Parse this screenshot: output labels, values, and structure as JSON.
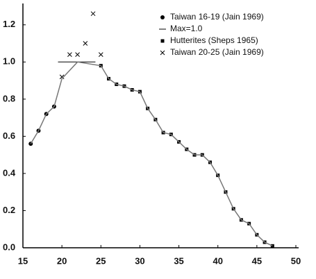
{
  "chart_data": {
    "type": "scatter",
    "xlim": [
      15,
      50
    ],
    "xticks": [
      15,
      20,
      25,
      30,
      35,
      40,
      45,
      50
    ],
    "ylim": [
      0,
      1.3
    ],
    "yticks": [
      {
        "value": 0,
        "label": "0.0"
      },
      0.2,
      0.4,
      0.6,
      0.8,
      {
        "value": 1,
        "label": "1.0"
      },
      1.2
    ],
    "series": [
      {
        "name": "Taiwan 16-19 (Jain 1969)",
        "marker": "circle",
        "color": "#000000",
        "x": [
          16,
          17,
          18,
          19
        ],
        "values": [
          0.56,
          0.63,
          0.72,
          0.76
        ]
      },
      {
        "name": "Max=1.0",
        "marker": "line",
        "color": "#000000",
        "x": [
          19.5,
          24.3
        ],
        "values": [
          1,
          1
        ]
      },
      {
        "name": "Hutterites (Sheps 1965)",
        "marker": "square",
        "color": "#000000",
        "x": [
          25,
          26,
          27,
          28,
          29,
          30,
          31,
          32,
          33,
          34,
          35,
          36,
          37,
          38,
          39,
          40,
          41,
          42,
          43,
          44,
          45,
          46,
          47
        ],
        "values": [
          0.98,
          0.91,
          0.88,
          0.87,
          0.85,
          0.84,
          0.75,
          0.69,
          0.62,
          0.61,
          0.57,
          0.53,
          0.5,
          0.5,
          0.46,
          0.39,
          0.3,
          0.21,
          0.15,
          0.13,
          0.07,
          0.03,
          0.01
        ]
      },
      {
        "name": "Taiwan 20-25 (Jain 1969)",
        "marker": "cross",
        "color": "#000000",
        "x": [
          20,
          21,
          22,
          23,
          24,
          25
        ],
        "values": [
          0.92,
          1.04,
          1.04,
          1.1,
          1.26,
          1.04
        ]
      },
      {
        "marker": "path",
        "color": "#777777",
        "x": [
          16,
          17,
          18,
          19,
          20,
          22,
          25,
          26,
          27,
          28,
          29,
          30,
          31,
          32,
          33,
          34,
          35,
          36,
          37,
          38,
          39,
          40,
          41,
          42,
          43,
          44,
          45,
          46,
          47
        ],
        "values": [
          0.56,
          0.63,
          0.72,
          0.76,
          0.91,
          1,
          0.98,
          0.91,
          0.88,
          0.87,
          0.85,
          0.84,
          0.75,
          0.69,
          0.62,
          0.61,
          0.57,
          0.53,
          0.5,
          0.5,
          0.46,
          0.39,
          0.3,
          0.21,
          0.15,
          0.13,
          0.07,
          0.03,
          0.01
        ]
      }
    ]
  }
}
